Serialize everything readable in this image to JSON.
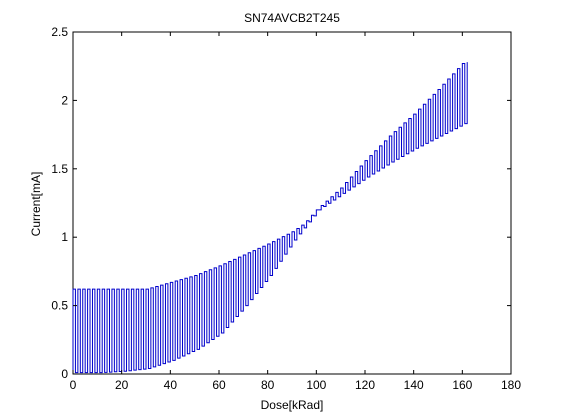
{
  "chart_data": {
    "type": "line",
    "title": "SN74AVCB2T245",
    "xlabel": "Dose[kRad]",
    "ylabel": "Current[mA]",
    "xlim": [
      0,
      180
    ],
    "ylim": [
      0,
      2.5
    ],
    "xticks": [
      0,
      20,
      40,
      60,
      80,
      100,
      120,
      140,
      160,
      180
    ],
    "yticks": [
      0,
      0.5,
      1,
      1.5,
      2,
      2.5
    ],
    "xtick_labels": [
      "0",
      "20",
      "40",
      "60",
      "80",
      "100",
      "120",
      "140",
      "160",
      "180"
    ],
    "ytick_labels": [
      "0",
      "0.5",
      "1",
      "1.5",
      "2",
      "2.5"
    ],
    "grid": false,
    "legend": null,
    "series_color": "#0000cc",
    "series": [
      {
        "style": "oscillating between an upper and lower envelope",
        "x_range": [
          0,
          162
        ],
        "cycle_spacing": 2,
        "upper_envelope": {
          "x": [
            0,
            10,
            20,
            30,
            40,
            50,
            60,
            70,
            80,
            90,
            95,
            100,
            110,
            120,
            130,
            140,
            150,
            160,
            162
          ],
          "y": [
            0.62,
            0.62,
            0.62,
            0.62,
            0.67,
            0.72,
            0.79,
            0.87,
            0.95,
            1.04,
            1.1,
            1.2,
            1.36,
            1.56,
            1.74,
            1.9,
            2.08,
            2.27,
            2.28
          ]
        },
        "lower_envelope": {
          "x": [
            0,
            10,
            20,
            30,
            40,
            50,
            60,
            70,
            80,
            90,
            100,
            110,
            120,
            130,
            140,
            150,
            160,
            162
          ],
          "y": [
            0.01,
            0.01,
            0.02,
            0.04,
            0.1,
            0.18,
            0.3,
            0.5,
            0.72,
            0.98,
            1.2,
            1.32,
            1.44,
            1.55,
            1.65,
            1.74,
            1.83,
            1.84
          ]
        }
      }
    ]
  }
}
